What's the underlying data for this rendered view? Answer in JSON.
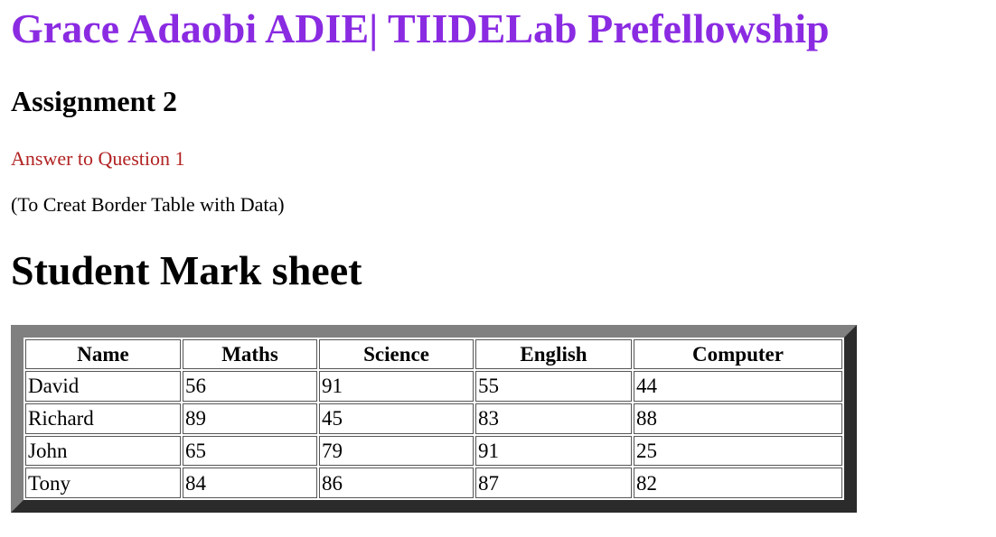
{
  "header": {
    "title": "Grace Adaobi ADIE| TIIDELab Prefellowship",
    "assignment": "Assignment 2",
    "answer_label": "Answer to Question 1",
    "subtitle": "(To Creat Border Table with Data)"
  },
  "sheet": {
    "title": "Student Mark sheet",
    "columns": [
      "Name",
      "Maths",
      "Science",
      "English",
      "Computer"
    ],
    "rows": [
      [
        "David",
        "56",
        "91",
        "55",
        "44"
      ],
      [
        "Richard",
        "89",
        "45",
        "83",
        "88"
      ],
      [
        "John",
        "65",
        "79",
        "91",
        "25"
      ],
      [
        "Tony",
        "84",
        "86",
        "87",
        "82"
      ]
    ]
  },
  "colors": {
    "title": "#8a2be2",
    "answer": "#b22222",
    "border_light": "#808080",
    "border_dark": "#2b2b2b"
  }
}
